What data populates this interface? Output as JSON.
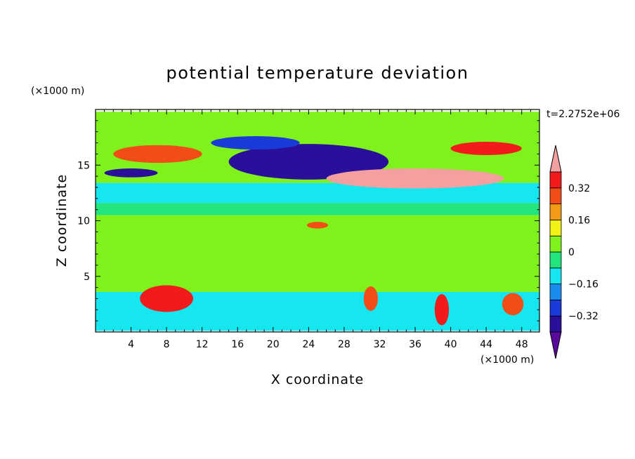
{
  "chart_data": {
    "type": "heatmap",
    "title": "potential temperature deviation",
    "xlabel": "X coordinate",
    "ylabel": "Z coordinate",
    "x_unit": "(×1000 m)",
    "y_unit": "(×1000 m)",
    "time_label": "t=2.2752e+06",
    "xlim": [
      0,
      50
    ],
    "ylim": [
      0,
      20
    ],
    "x_ticks": [
      4,
      8,
      12,
      16,
      20,
      24,
      28,
      32,
      36,
      40,
      44,
      48
    ],
    "y_ticks": [
      5,
      10,
      15
    ],
    "colorbar": {
      "levels": [
        -0.4,
        -0.32,
        -0.24,
        -0.16,
        -0.08,
        0,
        0.08,
        0.16,
        0.24,
        0.32,
        0.4
      ],
      "labels": [
        "−0.32",
        "−0.16",
        "0",
        "0.16",
        "0.32"
      ],
      "label_values": [
        -0.32,
        -0.16,
        0,
        0.16,
        0.32
      ],
      "colors": [
        "#5a0a9a",
        "#2a0f9a",
        "#1a3bd8",
        "#1a8cf0",
        "#16e6f0",
        "#22e67d",
        "#7ff21c",
        "#f2f216",
        "#f29a16",
        "#f24d16",
        "#f21a1a",
        "#f5a0a0"
      ],
      "extend": "both"
    },
    "regions": [
      {
        "type": "band",
        "x": [
          0,
          50
        ],
        "z": [
          0.1,
          3.6
        ],
        "value": -0.12
      },
      {
        "type": "band",
        "x": [
          0,
          50
        ],
        "z": [
          3.6,
          10.5
        ],
        "value": 0.04
      },
      {
        "type": "band",
        "x": [
          0,
          50
        ],
        "z": [
          10.5,
          11.6
        ],
        "value": -0.05
      },
      {
        "type": "band",
        "x": [
          0,
          50
        ],
        "z": [
          11.6,
          13.4
        ],
        "value": -0.14
      },
      {
        "type": "band",
        "x": [
          0,
          50
        ],
        "z": [
          13.4,
          19.8
        ],
        "value": 0.05
      },
      {
        "type": "blob",
        "x": 8,
        "z": 3.0,
        "rx": 3,
        "rz": 1.2,
        "value": 0.36
      },
      {
        "type": "blob",
        "x": 24,
        "z": 15.3,
        "rx": 9,
        "rz": 1.6,
        "value": -0.4
      },
      {
        "type": "blob",
        "x": 36,
        "z": 13.8,
        "rx": 10,
        "rz": 0.9,
        "value": 0.4
      },
      {
        "type": "blob",
        "x": 7,
        "z": 16.0,
        "rx": 5,
        "rz": 0.8,
        "value": 0.3
      },
      {
        "type": "blob",
        "x": 44,
        "z": 16.5,
        "rx": 4,
        "rz": 0.6,
        "value": 0.36
      },
      {
        "type": "blob",
        "x": 18,
        "z": 17.0,
        "rx": 5,
        "rz": 0.6,
        "value": -0.3
      },
      {
        "type": "blob",
        "x": 4,
        "z": 14.3,
        "rx": 3,
        "rz": 0.4,
        "value": -0.36
      },
      {
        "type": "blob",
        "x": 25,
        "z": 9.6,
        "rx": 1.2,
        "rz": 0.3,
        "value": 0.3
      },
      {
        "type": "blob",
        "x": 31,
        "z": 3.0,
        "rx": 0.8,
        "rz": 1.1,
        "value": 0.3
      },
      {
        "type": "blob",
        "x": 39,
        "z": 2.0,
        "rx": 0.8,
        "rz": 1.4,
        "value": 0.32
      },
      {
        "type": "blob",
        "x": 47,
        "z": 2.5,
        "rx": 1.2,
        "rz": 1.0,
        "value": 0.3
      }
    ]
  }
}
